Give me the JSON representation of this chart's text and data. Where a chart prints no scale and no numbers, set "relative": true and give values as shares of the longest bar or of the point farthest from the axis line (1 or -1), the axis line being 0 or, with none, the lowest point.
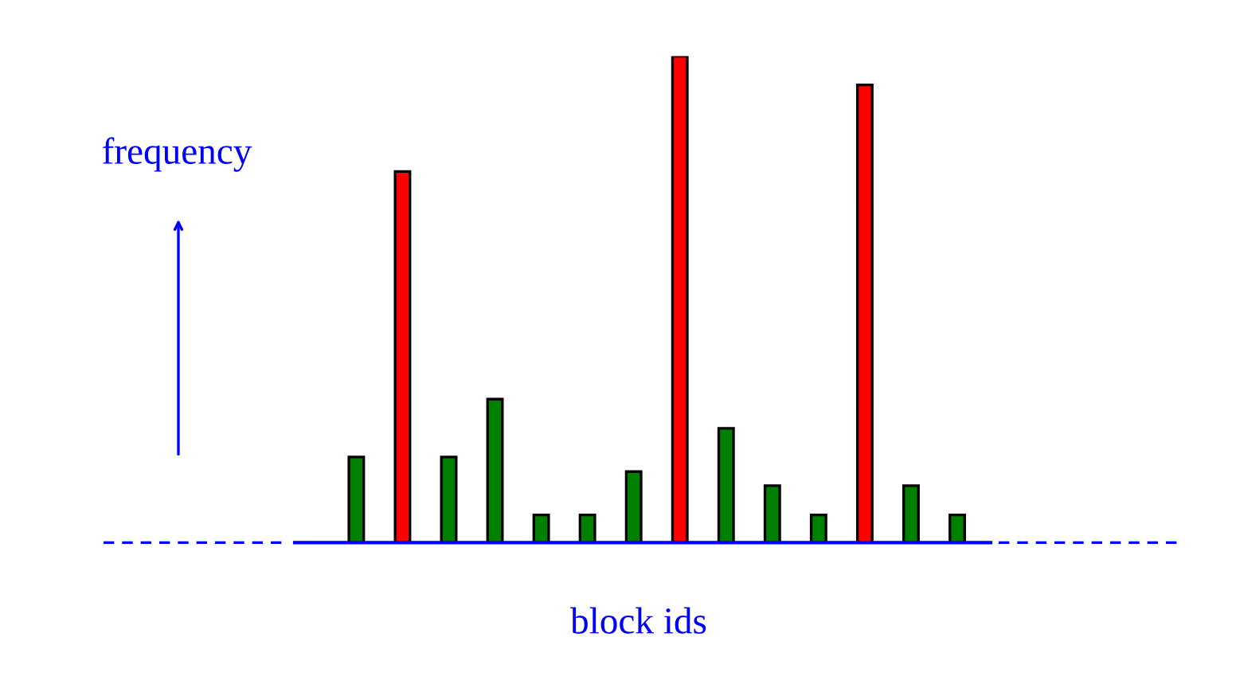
{
  "chart_data": {
    "type": "bar",
    "relative": true,
    "xlabel": "block ids",
    "ylabel": "frequency",
    "categories": [
      null,
      null,
      null,
      null,
      null,
      null,
      null,
      null,
      null,
      null,
      null,
      null,
      null,
      null
    ],
    "values": [
      0.176,
      0.763,
      0.176,
      0.295,
      0.057,
      0.057,
      0.146,
      1,
      0.235,
      0.117,
      0.057,
      0.941,
      0.117,
      0.057
    ],
    "colors": [
      "#008000",
      "#ff0000",
      "#008000",
      "#008000",
      "#008000",
      "#008000",
      "#008000",
      "#ff0000",
      "#008000",
      "#008000",
      "#008000",
      "#ff0000",
      "#008000",
      "#008000"
    ],
    "grid": false,
    "legend": false
  }
}
